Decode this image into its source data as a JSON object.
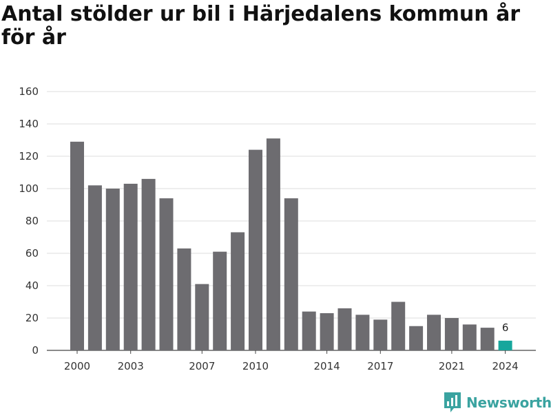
{
  "title": "Antal stölder ur bil i Härjedalens kommun år för år",
  "brand": {
    "name": "Newsworthy",
    "color": "#3aa3a0"
  },
  "chart_data": {
    "type": "bar",
    "title": "Antal stölder ur bil i Härjedalens kommun år för år",
    "xlabel": "",
    "ylabel": "",
    "ylim": [
      0,
      160
    ],
    "yticks": [
      0,
      20,
      40,
      60,
      80,
      100,
      120,
      140,
      160
    ],
    "grid": true,
    "categories": [
      "2000",
      "2001",
      "2002",
      "2003",
      "2004",
      "2005",
      "2006",
      "2007",
      "2008",
      "2009",
      "2010",
      "2011",
      "2012",
      "2013",
      "2014",
      "2015",
      "2016",
      "2017",
      "2018",
      "2019",
      "2020",
      "2021",
      "2022",
      "2023",
      "2024"
    ],
    "xtick_labels": [
      "2000",
      "2003",
      "2007",
      "2010",
      "2014",
      "2017",
      "2021",
      "2024"
    ],
    "values": [
      129,
      102,
      100,
      103,
      106,
      94,
      63,
      41,
      61,
      73,
      124,
      131,
      94,
      24,
      23,
      26,
      22,
      19,
      30,
      15,
      22,
      20,
      16,
      14,
      6
    ],
    "colors": {
      "default": "#6d6c70",
      "highlight": "#17a69c"
    },
    "highlight_index": 24,
    "data_labels": [
      {
        "index": 24,
        "text": "6"
      }
    ]
  }
}
